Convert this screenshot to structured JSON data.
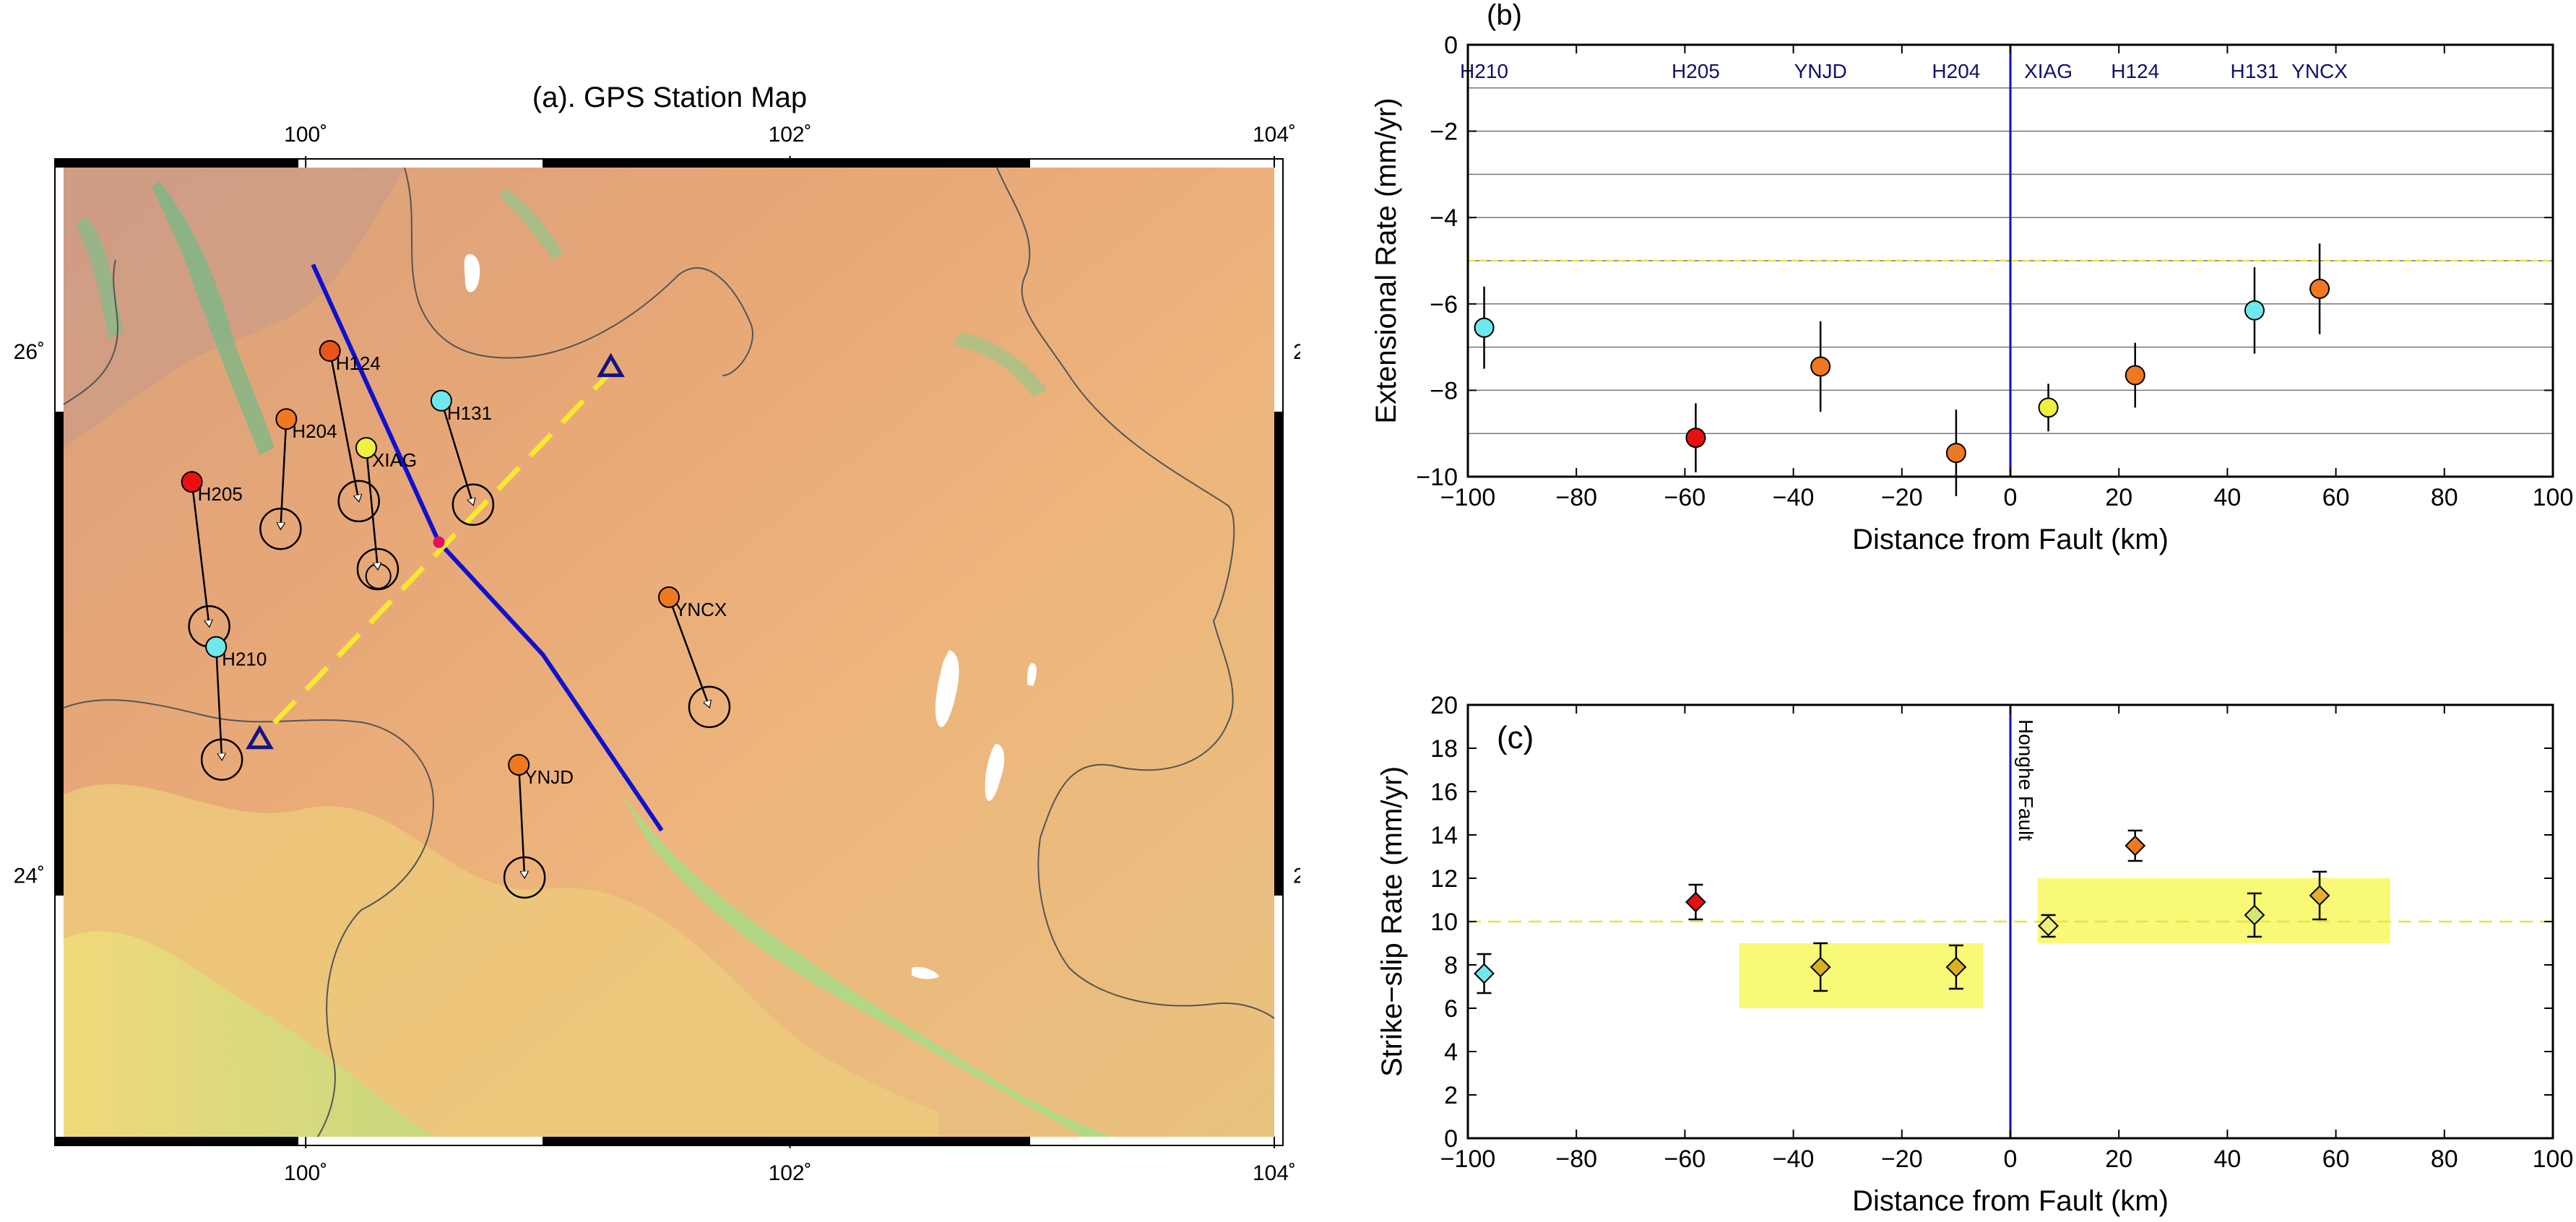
{
  "map": {
    "title": "(a). GPS Station Map",
    "lon_range": [
      99,
      104
    ],
    "lat_range": [
      23,
      26.7
    ],
    "lon_ticks": [
      100,
      102,
      104
    ],
    "lon_tick_labels": [
      "100˚",
      "102˚",
      "104˚"
    ],
    "lat_ticks": [
      24,
      26
    ],
    "lat_tick_labels": [
      "24˚",
      "26˚"
    ],
    "fault_trace": [
      [
        100.03,
        26.33
      ],
      [
        100.55,
        25.27
      ],
      [
        100.98,
        24.84
      ],
      [
        101.47,
        24.17
      ]
    ],
    "profile_line": [
      [
        99.87,
        24.58
      ],
      [
        101.25,
        25.91
      ]
    ],
    "profile_marker": [
      100.55,
      25.27
    ],
    "profile_ends": [
      [
        99.81,
        24.52
      ],
      [
        101.26,
        25.94
      ]
    ],
    "stations": [
      {
        "name": "H124",
        "lon": 100.1,
        "lat": 26.0,
        "color": "#e8541a",
        "ve": 0.1,
        "vn": -0.52
      },
      {
        "name": "H204",
        "lon": 99.92,
        "lat": 25.74,
        "color": "#f07820",
        "ve": -0.02,
        "vn": -0.38
      },
      {
        "name": "XIAG",
        "lon": 100.25,
        "lat": 25.63,
        "color": "#f0f040",
        "ve": 0.04,
        "vn": -0.42
      },
      {
        "name": "H131",
        "lon": 100.56,
        "lat": 25.81,
        "color": "#6ee8ec",
        "ve": 0.11,
        "vn": -0.36
      },
      {
        "name": "H205",
        "lon": 99.53,
        "lat": 25.5,
        "color": "#e81010",
        "ve": 0.06,
        "vn": -0.5
      },
      {
        "name": "H210",
        "lon": 99.63,
        "lat": 24.87,
        "color": "#6ee8ec",
        "ve": 0.02,
        "vn": -0.39
      },
      {
        "name": "YNCX",
        "lon": 101.5,
        "lat": 25.06,
        "color": "#f07820",
        "ve": 0.14,
        "vn": -0.38
      },
      {
        "name": "YNJD",
        "lon": 100.88,
        "lat": 24.42,
        "color": "#f07820",
        "ve": 0.02,
        "vn": -0.39
      }
    ],
    "extra_ellipse": [
      100.3,
      25.14
    ]
  },
  "chart_data": [
    {
      "panel": "(b)",
      "type": "scatter",
      "title": "",
      "xlabel": "Distance from Fault (km)",
      "ylabel": "Extensional Rate (mm/yr)",
      "xlim": [
        -100,
        100
      ],
      "ylim": [
        -10,
        0
      ],
      "x_ticks": [
        -100,
        -80,
        -60,
        -40,
        -20,
        0,
        20,
        40,
        60,
        80,
        100
      ],
      "y_ticks": [
        -10,
        -8,
        -6,
        -4,
        -2,
        0
      ],
      "grid": "horizontal",
      "gridlines_y": [
        -9,
        -8,
        -7,
        -6,
        -5,
        -4,
        -3,
        -2,
        -1
      ],
      "reference_line": -5,
      "fault_x": 0,
      "station_labels": [
        {
          "name": "H210",
          "x": -97
        },
        {
          "name": "H205",
          "x": -58
        },
        {
          "name": "YNJD",
          "x": -35
        },
        {
          "name": "H204",
          "x": -10
        },
        {
          "name": "XIAG",
          "x": 7
        },
        {
          "name": "H124",
          "x": 23
        },
        {
          "name": "H131",
          "x": 45
        },
        {
          "name": "YNCX",
          "x": 57
        }
      ],
      "points": [
        {
          "x": -97,
          "y": -6.55,
          "err": 0.95,
          "color": "#6ee8ec"
        },
        {
          "x": -58,
          "y": -9.1,
          "err": 0.8,
          "color": "#e81010"
        },
        {
          "x": -35,
          "y": -7.45,
          "err": 1.05,
          "color": "#f07820"
        },
        {
          "x": -10,
          "y": -9.45,
          "err": 1.0,
          "color": "#f07820"
        },
        {
          "x": 7,
          "y": -8.4,
          "err": 0.55,
          "color": "#f0f040"
        },
        {
          "x": 23,
          "y": -7.65,
          "err": 0.75,
          "color": "#f07820"
        },
        {
          "x": 45,
          "y": -6.15,
          "err": 1.0,
          "color": "#6ee8ec"
        },
        {
          "x": 57,
          "y": -5.65,
          "err": 1.05,
          "color": "#f07820"
        }
      ]
    },
    {
      "panel": "(c)",
      "type": "scatter",
      "title": "",
      "xlabel": "Distance from Fault (km)",
      "ylabel": "Strike−slip Rate (mm/yr)",
      "xlim": [
        -100,
        100
      ],
      "ylim": [
        0,
        20
      ],
      "x_ticks": [
        -100,
        -80,
        -60,
        -40,
        -20,
        0,
        20,
        40,
        60,
        80,
        100
      ],
      "y_ticks": [
        0,
        2,
        4,
        6,
        8,
        10,
        12,
        14,
        16,
        18,
        20
      ],
      "grid": "off",
      "reference_line": 10,
      "fault_x": 0,
      "fault_label": "Honghe Fault",
      "boxes": [
        {
          "x0": -50,
          "x1": -5,
          "y0": 6,
          "y1": 9
        },
        {
          "x0": 5,
          "x1": 70,
          "y0": 9,
          "y1": 12
        }
      ],
      "points": [
        {
          "x": -97,
          "y": 7.6,
          "err": 0.9,
          "color": "#6ee8ec"
        },
        {
          "x": -58,
          "y": 10.9,
          "err": 0.8,
          "color": "#e81010"
        },
        {
          "x": -35,
          "y": 7.9,
          "err": 1.1,
          "color": "#d8b020"
        },
        {
          "x": -10,
          "y": 7.9,
          "err": 1.0,
          "color": "#d8b020"
        },
        {
          "x": 7,
          "y": 9.8,
          "err": 0.5,
          "color": "#e8f080"
        },
        {
          "x": 23,
          "y": 13.5,
          "err": 0.7,
          "color": "#f07820"
        },
        {
          "x": 45,
          "y": 10.3,
          "err": 1.0,
          "color": "#d0e870"
        },
        {
          "x": 57,
          "y": 11.2,
          "err": 1.1,
          "color": "#e0b030"
        }
      ]
    }
  ]
}
